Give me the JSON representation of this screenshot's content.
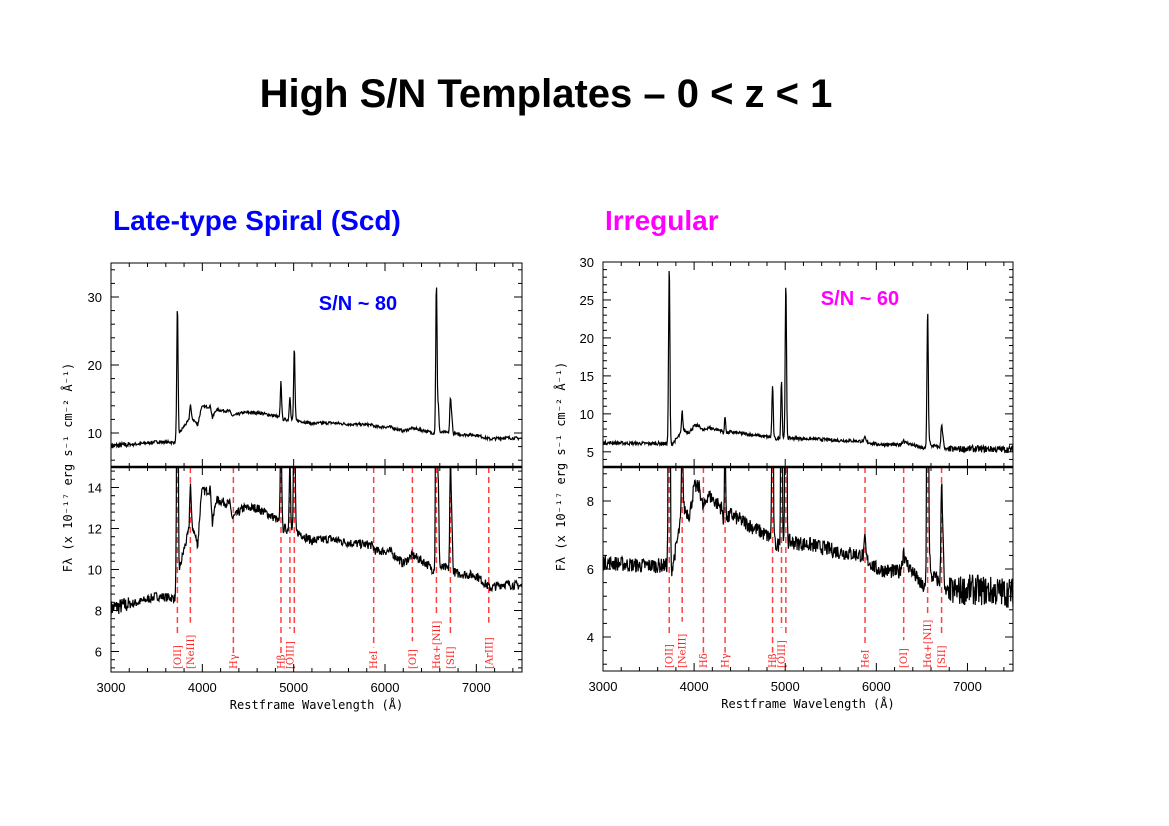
{
  "title": "High S/N Templates – 0 < z < 1",
  "chart_data": [
    {
      "type": "line",
      "title": "Late-type Spiral (Scd)",
      "annotation": "S/N ~ 80",
      "color": "#0000ff",
      "xlabel": "Restframe Wavelength (Å)",
      "ylabel": "Fλ (x 10⁻¹⁷ erg s⁻¹ cm⁻² Å⁻¹)",
      "xlim": [
        3000,
        7500
      ],
      "x_ticks": [
        3000,
        4000,
        5000,
        6000,
        7000
      ],
      "top_panel": {
        "ylim": [
          5,
          35
        ],
        "y_ticks": [
          10,
          20,
          30
        ]
      },
      "bottom_panel": {
        "ylim": [
          5,
          15
        ],
        "y_ticks": [
          6,
          8,
          10,
          12,
          14
        ]
      },
      "continuum": [
        [
          3000,
          8.1
        ],
        [
          3300,
          8.4
        ],
        [
          3500,
          8.7
        ],
        [
          3700,
          8.6
        ],
        [
          3740,
          9.8
        ],
        [
          3800,
          11.0
        ],
        [
          3880,
          12.3
        ],
        [
          3950,
          11.2
        ],
        [
          3990,
          13.8
        ],
        [
          4090,
          13.9
        ],
        [
          4110,
          12.2
        ],
        [
          4150,
          13.4
        ],
        [
          4300,
          13.2
        ],
        [
          4330,
          12.5
        ],
        [
          4450,
          13.0
        ],
        [
          4600,
          13.0
        ],
        [
          4800,
          12.5
        ],
        [
          4880,
          12.0
        ],
        [
          5050,
          11.8
        ],
        [
          5200,
          11.4
        ],
        [
          5400,
          11.5
        ],
        [
          5600,
          11.3
        ],
        [
          5850,
          11.2
        ],
        [
          5900,
          10.9
        ],
        [
          6050,
          10.9
        ],
        [
          6200,
          10.3
        ],
        [
          6300,
          10.7
        ],
        [
          6450,
          10.3
        ],
        [
          6520,
          10.0
        ],
        [
          6650,
          10.1
        ],
        [
          6800,
          9.8
        ],
        [
          7000,
          9.7
        ],
        [
          7150,
          9.1
        ],
        [
          7300,
          9.3
        ],
        [
          7500,
          9.2
        ]
      ],
      "emission_lines": [
        [
          3727,
          28.6
        ],
        [
          3869,
          14.2
        ],
        [
          4861,
          17.6
        ],
        [
          4959,
          15.5
        ],
        [
          5007,
          22.6
        ],
        [
          6563,
          32.3
        ],
        [
          6584,
          14.0
        ],
        [
          6716,
          14.8
        ],
        [
          6731,
          12.5
        ]
      ],
      "line_markers": [
        {
          "label": "[OII]",
          "wavelength": 3727
        },
        {
          "label": "[NeIII]",
          "wavelength": 3869
        },
        {
          "label": "Hγ",
          "wavelength": 4340
        },
        {
          "label": "Hβ",
          "wavelength": 4861
        },
        {
          "label": "[OIII]",
          "wavelength": 4959
        },
        {
          "label": "",
          "wavelength": 5007
        },
        {
          "label": "HeI",
          "wavelength": 5876
        },
        {
          "label": "[OI]",
          "wavelength": 6300
        },
        {
          "label": "Hα+[NII]",
          "wavelength": 6563
        },
        {
          "label": "[SII]",
          "wavelength": 6716
        },
        {
          "label": "[ArIII]",
          "wavelength": 7136
        }
      ]
    },
    {
      "type": "line",
      "title": "Irregular",
      "annotation": "S/N ~ 60",
      "color": "#ff00ff",
      "xlabel": "Restframe Wavelength (Å)",
      "ylabel": "Fλ (x 10⁻¹⁷ erg s⁻¹ cm⁻² Å⁻¹)",
      "xlim": [
        3000,
        7500
      ],
      "x_ticks": [
        3000,
        4000,
        5000,
        6000,
        7000
      ],
      "top_panel": {
        "ylim": [
          3,
          30
        ],
        "y_ticks": [
          5,
          10,
          15,
          20,
          25,
          30
        ]
      },
      "bottom_panel": {
        "ylim": [
          3,
          9
        ],
        "y_ticks": [
          4,
          6,
          8
        ]
      },
      "continuum": [
        [
          3000,
          6.2
        ],
        [
          3400,
          6.1
        ],
        [
          3700,
          6.1
        ],
        [
          3740,
          5.8
        ],
        [
          3800,
          6.6
        ],
        [
          3880,
          7.8
        ],
        [
          3950,
          7.6
        ],
        [
          4000,
          8.4
        ],
        [
          4060,
          8.4
        ],
        [
          4100,
          7.7
        ],
        [
          4150,
          8.2
        ],
        [
          4300,
          7.8
        ],
        [
          4330,
          7.3
        ],
        [
          4400,
          7.6
        ],
        [
          4600,
          7.3
        ],
        [
          4850,
          6.9
        ],
        [
          4900,
          6.7
        ],
        [
          5050,
          6.8
        ],
        [
          5300,
          6.7
        ],
        [
          5600,
          6.5
        ],
        [
          5850,
          6.4
        ],
        [
          6000,
          6.0
        ],
        [
          6250,
          5.9
        ],
        [
          6300,
          6.3
        ],
        [
          6500,
          5.5
        ],
        [
          6550,
          5.4
        ],
        [
          6620,
          5.8
        ],
        [
          6700,
          5.6
        ],
        [
          6760,
          5.3
        ],
        [
          7000,
          5.4
        ],
        [
          7500,
          5.3
        ]
      ],
      "emission_lines": [
        [
          3727,
          29.7
        ],
        [
          3869,
          10.3
        ],
        [
          4102,
          7.8
        ],
        [
          4340,
          9.6
        ],
        [
          4861,
          13.8
        ],
        [
          4959,
          14.5
        ],
        [
          5007,
          27.3
        ],
        [
          5876,
          6.9
        ],
        [
          6300,
          6.6
        ],
        [
          6563,
          23.8
        ],
        [
          6584,
          6.5
        ],
        [
          6716,
          8.5
        ],
        [
          6731,
          7.0
        ]
      ],
      "line_markers": [
        {
          "label": "[OII]",
          "wavelength": 3727
        },
        {
          "label": "[NeIII]",
          "wavelength": 3869
        },
        {
          "label": "Hδ",
          "wavelength": 4102
        },
        {
          "label": "Hγ",
          "wavelength": 4340
        },
        {
          "label": "Hβ",
          "wavelength": 4861
        },
        {
          "label": "[OIII]",
          "wavelength": 4959
        },
        {
          "label": "",
          "wavelength": 5007
        },
        {
          "label": "HeI",
          "wavelength": 5876
        },
        {
          "label": "[OI]",
          "wavelength": 6300
        },
        {
          "label": "Hα+[NII]",
          "wavelength": 6563
        },
        {
          "label": "[SII]",
          "wavelength": 6716
        }
      ]
    }
  ]
}
